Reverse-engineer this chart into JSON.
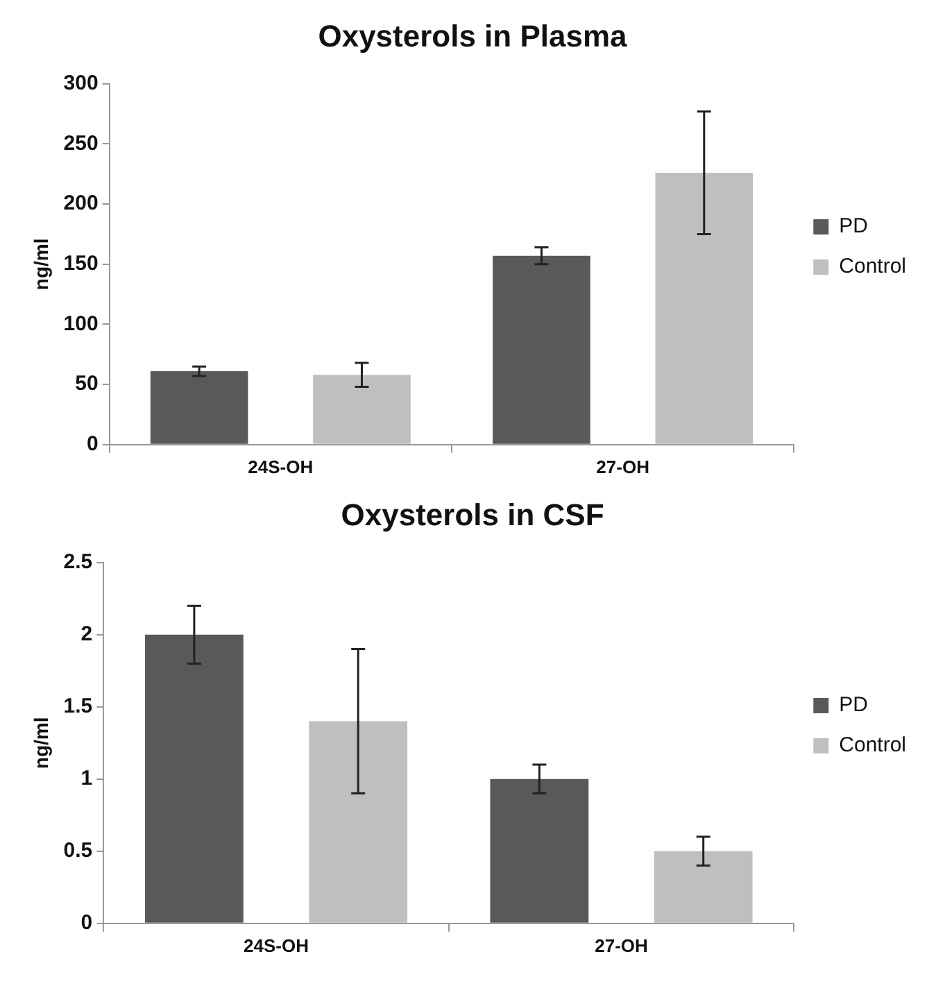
{
  "chart_data": [
    {
      "type": "bar",
      "title": "Oxysterols in Plasma",
      "ylabel": "ng/ml",
      "categories": [
        "24S-OH",
        "27-OH"
      ],
      "series": [
        {
          "name": "PD",
          "color": "#595959",
          "values": [
            61,
            157
          ],
          "errors": [
            4,
            7
          ]
        },
        {
          "name": "Control",
          "color": "#bfbfbf",
          "values": [
            58,
            226
          ],
          "errors": [
            10,
            51
          ]
        }
      ],
      "ylim": [
        0,
        300
      ],
      "yticks": [
        0,
        50,
        100,
        150,
        200,
        250,
        300
      ],
      "grid": false,
      "legend": "right"
    },
    {
      "type": "bar",
      "title": "Oxysterols in CSF",
      "ylabel": "ng/ml",
      "categories": [
        "24S-OH",
        "27-OH"
      ],
      "series": [
        {
          "name": "PD",
          "color": "#595959",
          "values": [
            2,
            1
          ],
          "errors": [
            0.2,
            0.1
          ]
        },
        {
          "name": "Control",
          "color": "#bfbfbf",
          "values": [
            1.4,
            0.5
          ],
          "errors": [
            0.5,
            0.1
          ]
        }
      ],
      "ylim": [
        0,
        2.5
      ],
      "yticks": [
        0,
        0.5,
        1,
        1.5,
        2,
        2.5
      ],
      "grid": false,
      "legend": "right"
    }
  ]
}
